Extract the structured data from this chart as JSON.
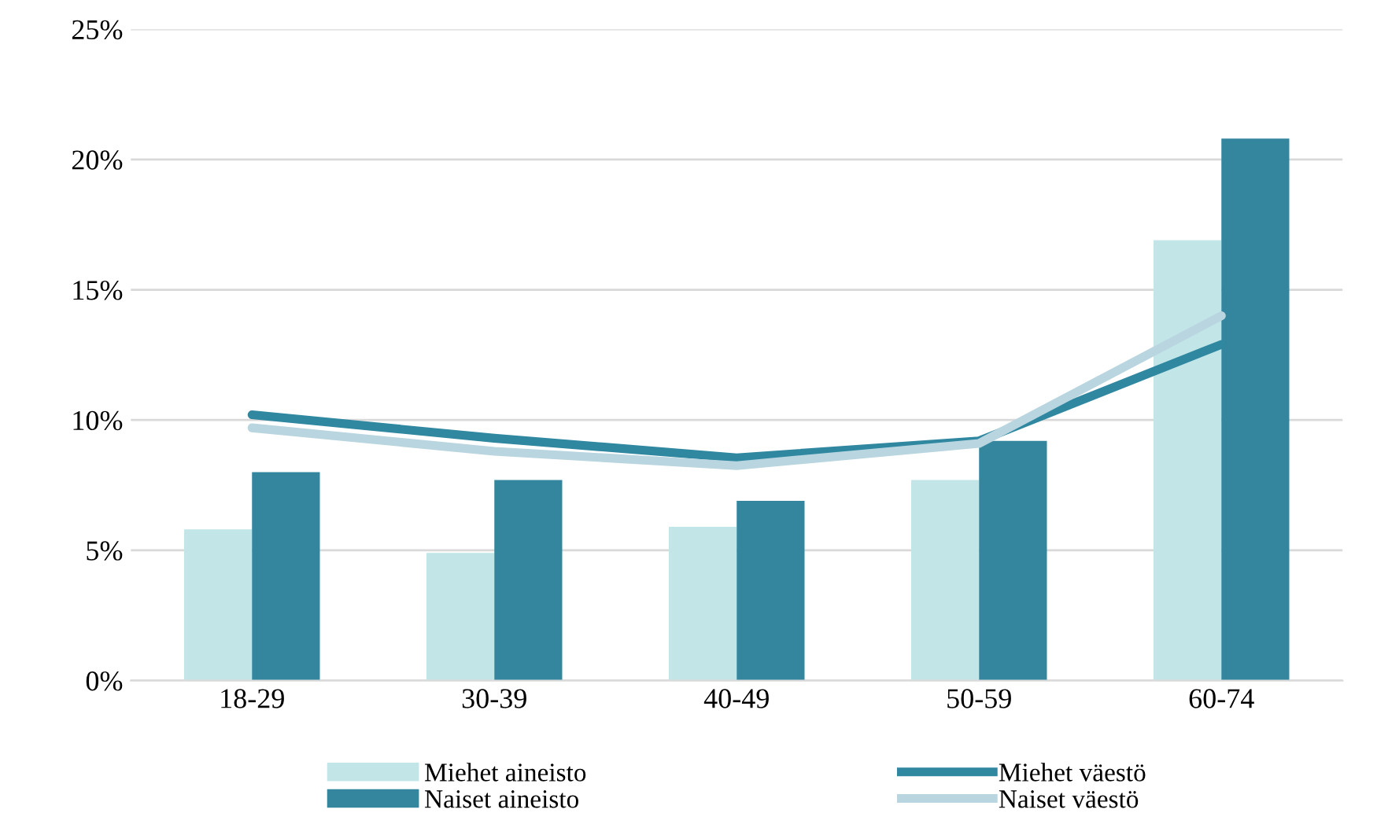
{
  "chart_data": {
    "type": "bar",
    "categories": [
      "18-29",
      "30-39",
      "40-49",
      "50-59",
      "60-74"
    ],
    "series": [
      {
        "name": "Miehet aineisto",
        "color": "#c2e6e8",
        "values": [
          5.8,
          4.9,
          5.9,
          7.7,
          16.9
        ]
      },
      {
        "name": "Naiset aineisto",
        "color": "#33869e",
        "values": [
          8.0,
          7.7,
          6.9,
          9.2,
          20.8
        ]
      },
      {
        "name": "Miehet väestö",
        "type": "line",
        "color": "#2f87a0",
        "values": [
          10.2,
          9.3,
          8.55,
          9.2,
          12.9
        ]
      },
      {
        "name": "Naiset väestö",
        "type": "line",
        "color": "#b9d5e0",
        "values": [
          9.7,
          8.8,
          8.25,
          9.1,
          14.0
        ]
      }
    ],
    "ylim": [
      0,
      25
    ],
    "yticks": [
      {
        "value": 0,
        "label": "0%"
      },
      {
        "value": 5,
        "label": "5%"
      },
      {
        "value": 10,
        "label": "10%"
      },
      {
        "value": 15,
        "label": "15%"
      },
      {
        "value": 20,
        "label": "20%"
      },
      {
        "value": 25,
        "label": "25%"
      }
    ],
    "grid": "y",
    "legend": "bottom",
    "marker": "none",
    "line_style": "solid"
  }
}
